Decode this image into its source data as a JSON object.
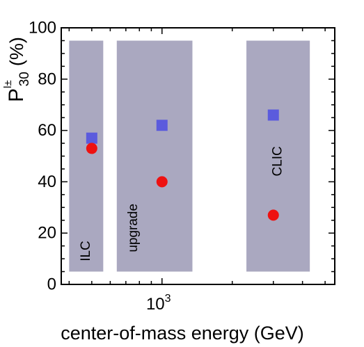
{
  "chart_data": {
    "type": "scatter",
    "title": "",
    "xlabel": "center-of-mass energy (GeV)",
    "ylabel": {
      "base": "P",
      "superscript": "l±",
      "subscript": "30",
      "unit": "(%)"
    },
    "xscale": "log",
    "xlim": [
      370,
      5500
    ],
    "ylim": [
      0,
      100
    ],
    "x_tick_labels": [
      {
        "value": 1000,
        "base": "10",
        "exponent": "3"
      }
    ],
    "y_ticks": [
      0,
      20,
      40,
      60,
      80,
      100
    ],
    "y_tick_labels": [
      "0",
      "20",
      "40",
      "60",
      "80",
      "100"
    ],
    "grid": false,
    "legend": "none",
    "bands": [
      {
        "label": "ILC",
        "x_min": 400,
        "x_max": 560,
        "y_min": 5,
        "y_max": 95
      },
      {
        "label": "upgrade",
        "x_min": 640,
        "x_max": 1350,
        "y_min": 5,
        "y_max": 95
      },
      {
        "label": "CLIC",
        "x_min": 2300,
        "x_max": 4300,
        "y_min": 5,
        "y_max": 95
      }
    ],
    "series": [
      {
        "marker": "square",
        "color": "#5b5bdd",
        "points": [
          {
            "x": 500,
            "y": 57
          },
          {
            "x": 1000,
            "y": 62
          },
          {
            "x": 3000,
            "y": 66
          }
        ]
      },
      {
        "marker": "circle",
        "color": "#ee1111",
        "points": [
          {
            "x": 500,
            "y": 53
          },
          {
            "x": 1000,
            "y": 40
          },
          {
            "x": 3000,
            "y": 27
          }
        ]
      }
    ],
    "band_color": "#aaa8c0"
  }
}
